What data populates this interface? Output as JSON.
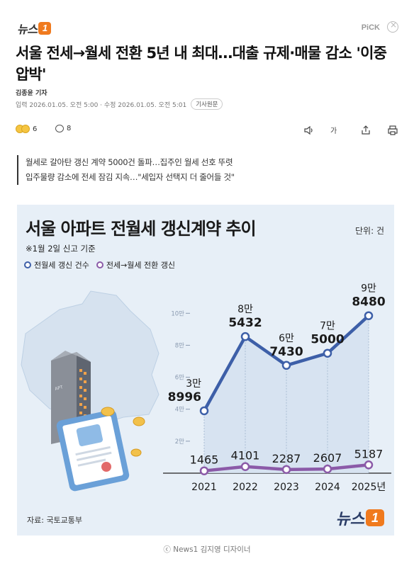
{
  "header": {
    "logo_text": "뉴스",
    "logo_badge": "1",
    "pick": "PiCK"
  },
  "article": {
    "title": "서울 전세→월세 전환 5년 내 최대…대출 규제·매물 감소 '이중 압박'",
    "author": "김종윤 기자",
    "dates": "입력 2026.01.05. 오전 5:00 · 수정 2026.01.05. 오전 5:01",
    "original_label": "기사원문",
    "reaction_count": "6",
    "comment_count": "8",
    "font_size_label": "가",
    "summary": [
      "월세로 갈아탄 갱신 계약 5000건 돌파…집주인 월세 선호 뚜렷",
      "입주물량 감소에 전세 잠김 지속…\"세입자 선택지 더 줄어들 것\""
    ],
    "photo_credit": "ⓒ News1 김지영 디자이너"
  },
  "infographic": {
    "title": "서울 아파트 전월세 갱신계약 추이",
    "unit": "단위: 건",
    "note": "※1월 2일 신고 기준",
    "legend": [
      "전월세 갱신 건수",
      "전세→월세 전환 갱신"
    ],
    "source": "자료: 국토교통부",
    "logo_text": "뉴스",
    "logo_badge": "1",
    "building_label": "APT"
  },
  "chart_data": {
    "type": "line",
    "title": "서울 아파트 전월세 갱신계약 추이",
    "categories": [
      "2021",
      "2022",
      "2023",
      "2024",
      "2025년"
    ],
    "ylabels": [
      "2만",
      "4만",
      "6만",
      "8만",
      "10만"
    ],
    "yticks": [
      20000,
      40000,
      60000,
      80000,
      100000
    ],
    "ylim": [
      0,
      105000
    ],
    "series": [
      {
        "name": "전월세 갱신 건수",
        "color": "#3d5fa8",
        "values": [
          38996,
          85432,
          67430,
          75000,
          98480
        ],
        "label_top": [
          "3만",
          "8만",
          "6만",
          "7만",
          "9만"
        ],
        "label_bottom": [
          "8996",
          "5432",
          "7430",
          "5000",
          "8480"
        ]
      },
      {
        "name": "전세→월세 전환 갱신",
        "color": "#8b5aa8",
        "values": [
          1465,
          4101,
          2287,
          2607,
          5187
        ],
        "labels": [
          "1465",
          "4101",
          "2287",
          "2607",
          "5187"
        ]
      }
    ]
  }
}
